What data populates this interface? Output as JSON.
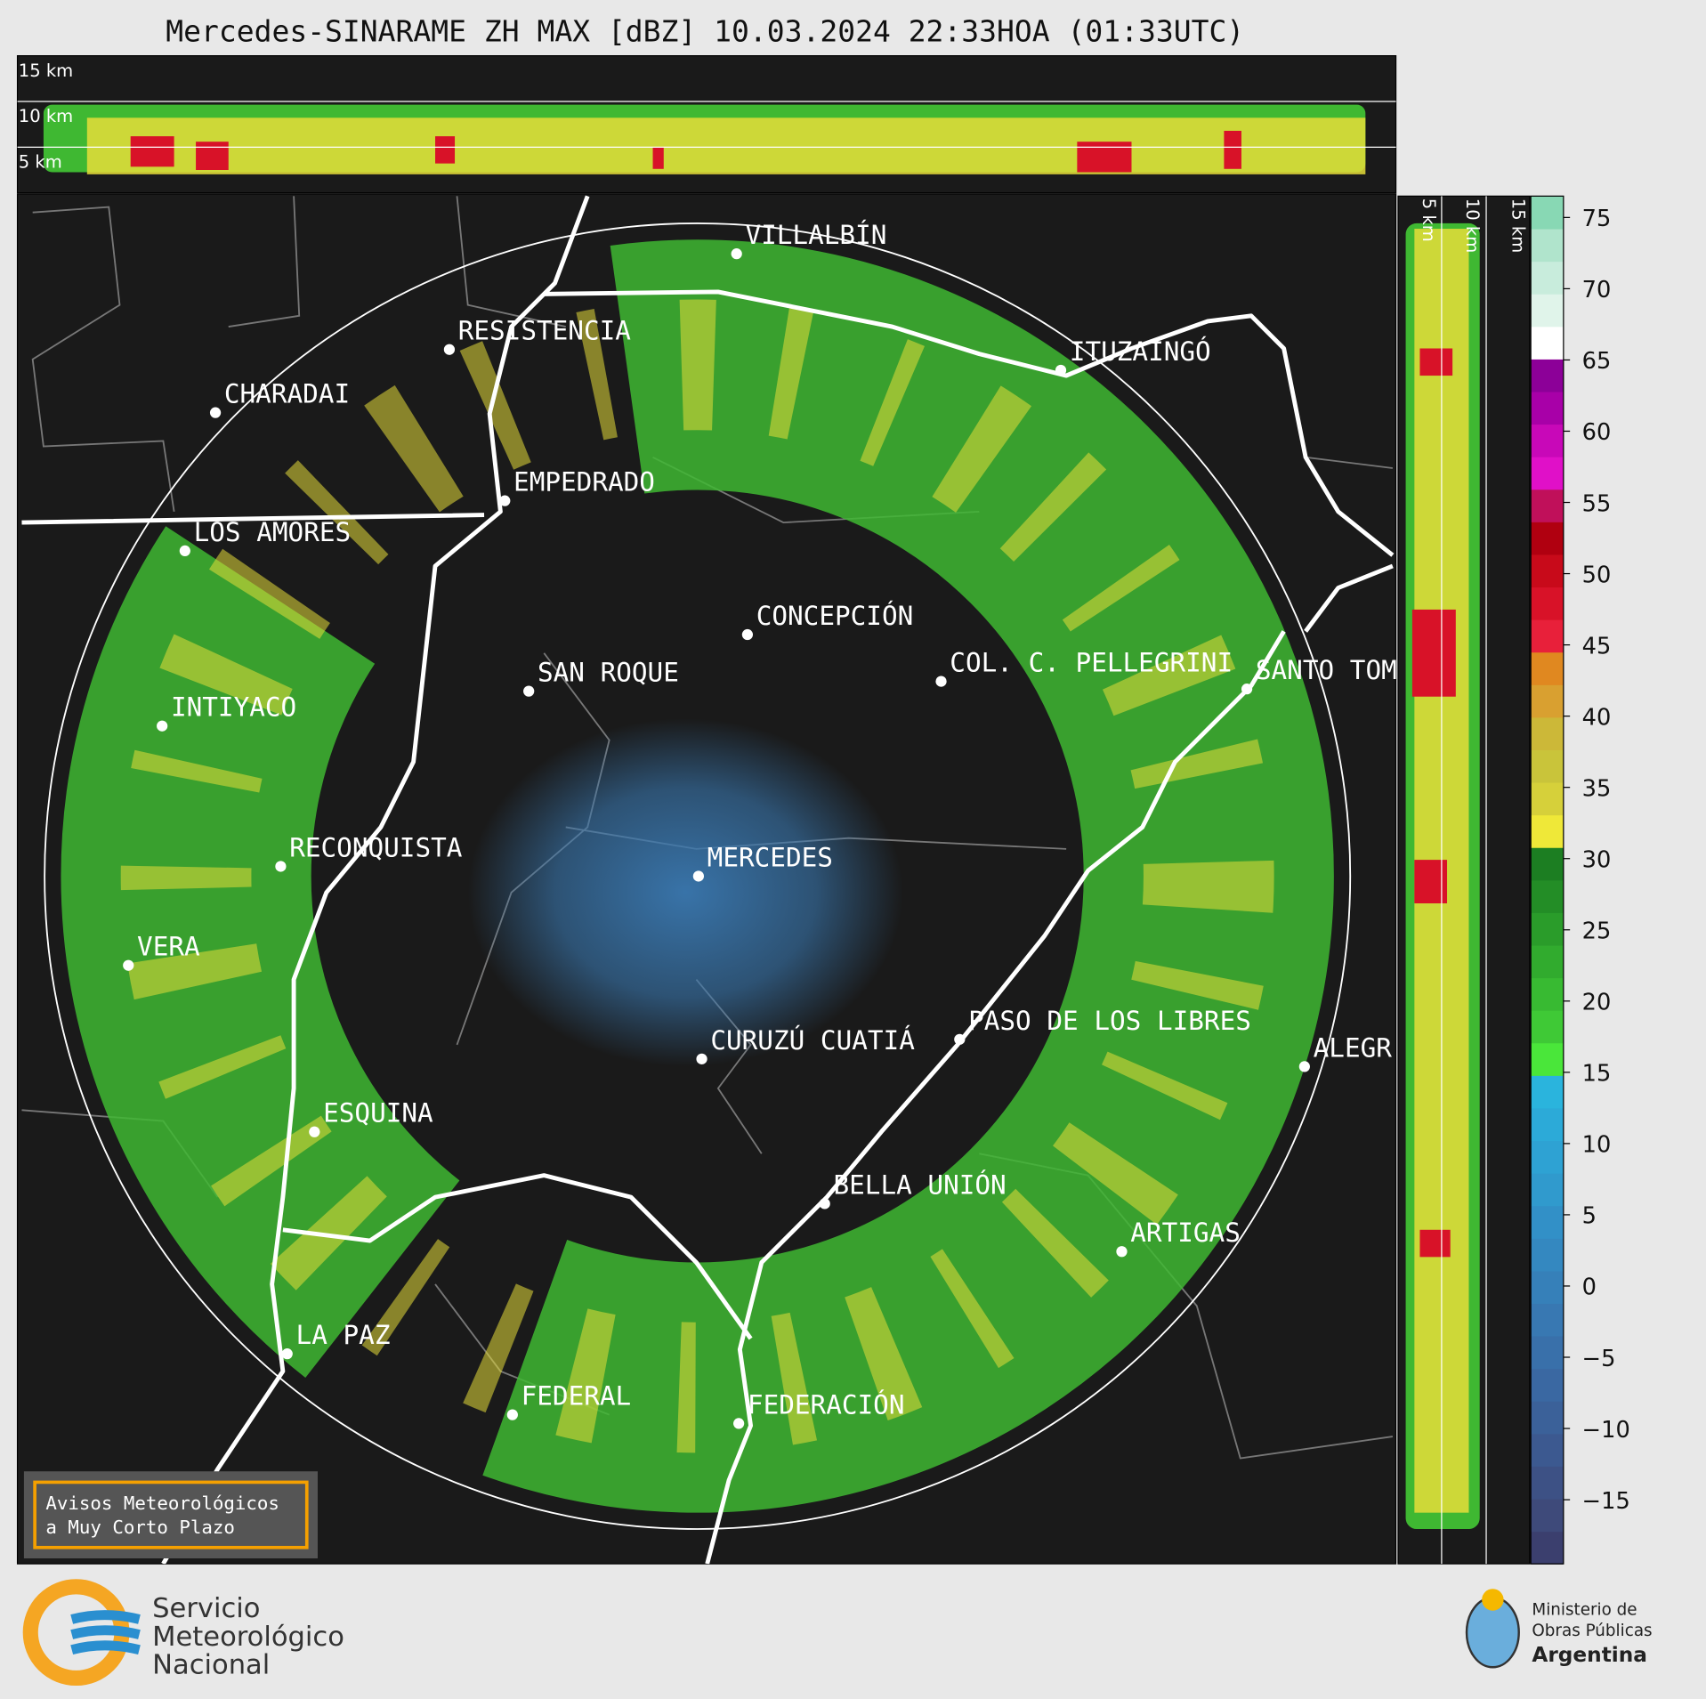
{
  "title": "Mercedes-SINARAME ZH MAX [dBZ] 10.03.2024 22:33HOA (01:33UTC)",
  "top_panel": {
    "height_labels": [
      "15 km",
      "10 km",
      "5 km"
    ]
  },
  "side_panel": {
    "height_labels": [
      "5 km",
      "10 km",
      "15 km"
    ]
  },
  "cities": [
    {
      "label": "VILLALBÍN"
    },
    {
      "label": "RESISTENCIA"
    },
    {
      "label": "CHARADAI"
    },
    {
      "label": "ITUZAINGÓ"
    },
    {
      "label": "EMPEDRADO"
    },
    {
      "label": "LOS AMORES"
    },
    {
      "label": "CONCEPCIÓN"
    },
    {
      "label": "SAN ROQUE"
    },
    {
      "label": "COL. C. PELLEGRINI"
    },
    {
      "label": "SANTO TOM"
    },
    {
      "label": "INTIYACO"
    },
    {
      "label": "MERCEDES"
    },
    {
      "label": "RECONQUISTA"
    },
    {
      "label": "VERA"
    },
    {
      "label": "PASO DE LOS LIBRES"
    },
    {
      "label": "CURUZÚ CUATIÁ"
    },
    {
      "label": "ALEGR"
    },
    {
      "label": "ESQUINA"
    },
    {
      "label": "BELLA UNIÓN"
    },
    {
      "label": "ARTIGAS"
    },
    {
      "label": "LA PAZ"
    },
    {
      "label": "FEDERAL"
    },
    {
      "label": "FEDERACIÓN"
    }
  ],
  "colorbar": {
    "lim": [
      -19.5,
      76.5
    ],
    "ticks": [
      75,
      70,
      65,
      60,
      55,
      50,
      45,
      40,
      35,
      30,
      25,
      20,
      15,
      10,
      5,
      0,
      {
        "value": -5,
        "label": "−5"
      },
      {
        "value": -10,
        "label": "−10"
      },
      {
        "value": -15,
        "label": "−15"
      }
    ],
    "colors": [
      "#3b3f6e",
      "#3e4a7a",
      "#3d5185",
      "#3c5990",
      "#3b6199",
      "#3a68a2",
      "#3970aa",
      "#3878b2",
      "#3680b9",
      "#3488c0",
      "#3290c7",
      "#309acd",
      "#2ea2d3",
      "#2caad8",
      "#2ab4dd",
      "#4ae63a",
      "#3fc936",
      "#38ba32",
      "#31ab2e",
      "#2a9c2a",
      "#238d26",
      "#1c7e22",
      "#efe838",
      "#d6d03a",
      "#c9c43a",
      "#ccb838",
      "#d9a030",
      "#e08820",
      "#e8203a",
      "#d81228",
      "#c80a1a",
      "#b00010",
      "#c0105a",
      "#e010c8",
      "#c808b8",
      "#a800a8",
      "#8c0098",
      "#ffffff",
      "#e0f4ea",
      "#c8ecdc",
      "#b0e4cc",
      "#88d8b4"
    ]
  },
  "warning_box": {
    "lines": [
      "Avisos Meteorológicos",
      "a Muy Corto Plazo"
    ]
  },
  "logo_smn": {
    "lines": [
      "Servicio",
      "Meteorológico",
      "Nacional"
    ]
  },
  "logo_ministry": {
    "lines": [
      "Ministerio de",
      "Obras Públicas",
      "Argentina"
    ]
  }
}
